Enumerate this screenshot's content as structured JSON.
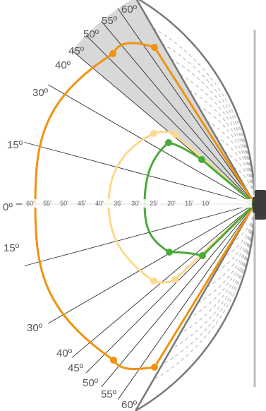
{
  "angle_labels": [
    "0º",
    "15º",
    "30º",
    "40º",
    "45º",
    "50º",
    "55º",
    "60º"
  ],
  "distance_labels": [
    "60'",
    "55'",
    "50'",
    "45'",
    "40'",
    "35'",
    "30'",
    "25'",
    "20'",
    "15'",
    "10'"
  ],
  "colors": {
    "outer_curve": "#f0920e",
    "middle_curve": "#fcd98c",
    "inner_curve": "#4aaa3a",
    "fan_shade": "#d8d8d8",
    "frame": "#777777",
    "radial_line": "#2b2b2b",
    "dashed_arc": "#bdbdbd",
    "wall": "#bdbdbd",
    "sensor": "#3d3d3d"
  },
  "coverage": {
    "outer": {
      "color_key": "outer_curve",
      "range_ft": 60,
      "half_angle_deg": 60
    },
    "middle": {
      "color_key": "middle_curve",
      "range_ft": 37,
      "half_angle_deg": 30
    },
    "inner": {
      "color_key": "inner_curve",
      "range_ft": 28,
      "half_angle_deg": 30
    }
  }
}
